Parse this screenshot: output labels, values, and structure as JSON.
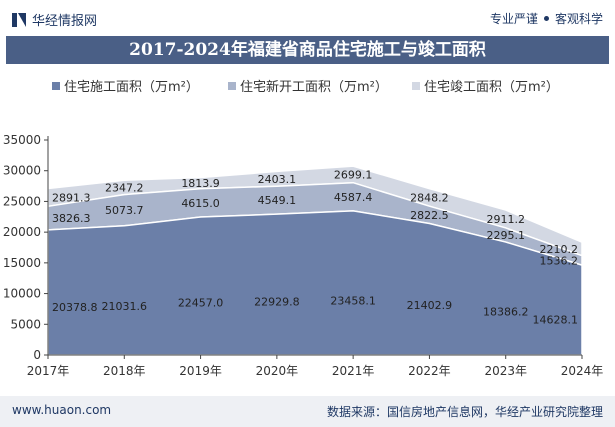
{
  "header": {
    "brand": "华经情报网",
    "tagline_left": "专业严谨",
    "tagline_right": "客观科学"
  },
  "footer": {
    "url": "www.huaon.com",
    "source": "数据来源：国信房地产信息网，华经产业研究院整理"
  },
  "colors": {
    "title_bg": "#4a5f86",
    "series1": "#6b7fa8",
    "series2": "#a9b4cb",
    "series3": "#d3d8e3"
  },
  "chart_data": {
    "type": "area",
    "stacked": true,
    "title": "2017-2024年福建省商品住宅施工与竣工面积",
    "xlabel": "",
    "ylabel": "",
    "ylim": [
      0,
      35000
    ],
    "yticks": [
      0,
      5000,
      10000,
      15000,
      20000,
      25000,
      30000,
      35000
    ],
    "categories": [
      "2017年",
      "2018年",
      "2019年",
      "2020年",
      "2021年",
      "2022年",
      "2023年",
      "2024年"
    ],
    "series": [
      {
        "name": "住宅施工面积（万m²）",
        "values": [
          20378.8,
          21031.6,
          22457.0,
          22929.8,
          23458.1,
          21402.9,
          18386.2,
          14628.1
        ]
      },
      {
        "name": "住宅新开工面积（万m²）",
        "values": [
          3826.3,
          5073.7,
          4615.0,
          4549.1,
          4587.4,
          2822.5,
          2295.1,
          1536.2
        ]
      },
      {
        "name": "住宅竣工面积（万m²）",
        "values": [
          2891.3,
          2347.2,
          1813.9,
          2403.1,
          2699.1,
          2848.2,
          2911.2,
          2210.2
        ]
      }
    ],
    "labels": [
      [
        "20378.8",
        "21031.6",
        "22457.0",
        "22929.8",
        "23458.1",
        "21402.9",
        "18386.2",
        "14628.1"
      ],
      [
        "3826.3",
        "5073.7",
        "4615.0",
        "4549.1",
        "4587.4",
        "2822.5",
        "2295.1",
        "1536.2"
      ],
      [
        "2891.3",
        "2347.2",
        "1813.9",
        "2403.1",
        "2699.1",
        "2848.2",
        "2911.2",
        "2210.2"
      ]
    ],
    "legend_position": "top"
  }
}
